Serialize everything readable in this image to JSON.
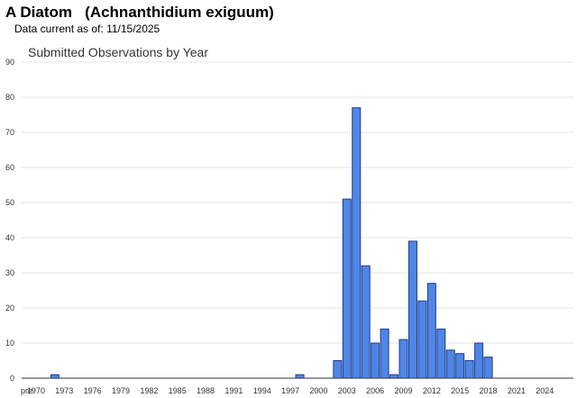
{
  "header": {
    "title": "A Diatom   (Achnanthidium exiguum)",
    "data_current_label": "Data current as of:",
    "data_current_date": "11/15/2025"
  },
  "colors": {
    "bar_fill": "#4f86e6",
    "bar_stroke": "#1c3e8c",
    "gridline": "#e6e6e6",
    "axis": "#333333"
  },
  "chart_data": {
    "type": "bar",
    "title": "Submitted Observations by Year",
    "xlabel": "",
    "ylabel": "",
    "ylim": [
      0,
      90
    ],
    "y_ticks": [
      0,
      10,
      20,
      30,
      40,
      50,
      60,
      70,
      80,
      90
    ],
    "grid": true,
    "legend": "none",
    "x_tick_labels": [
      "pre",
      "1970",
      "1973",
      "1976",
      "1979",
      "1982",
      "1985",
      "1988",
      "1991",
      "1994",
      "1997",
      "2000",
      "2003",
      "2006",
      "2009",
      "2012",
      "2015",
      "2018",
      "2021",
      "2024"
    ],
    "categories": [
      "pre",
      "1970",
      "1971",
      "1972",
      "1973",
      "1974",
      "1975",
      "1976",
      "1977",
      "1978",
      "1979",
      "1980",
      "1981",
      "1982",
      "1983",
      "1984",
      "1985",
      "1986",
      "1987",
      "1988",
      "1989",
      "1990",
      "1991",
      "1992",
      "1993",
      "1994",
      "1995",
      "1996",
      "1997",
      "1998",
      "1999",
      "2000",
      "2001",
      "2002",
      "2003",
      "2004",
      "2005",
      "2006",
      "2007",
      "2008",
      "2009",
      "2010",
      "2011",
      "2012",
      "2013",
      "2014",
      "2015",
      "2016",
      "2017",
      "2018",
      "2019",
      "2020",
      "2021",
      "2022",
      "2023",
      "2024",
      "2025"
    ],
    "series": [
      {
        "values": [
          0,
          0,
          0,
          1,
          0,
          0,
          0,
          0,
          0,
          0,
          0,
          0,
          0,
          0,
          0,
          0,
          0,
          0,
          0,
          0,
          0,
          0,
          0,
          0,
          0,
          0,
          0,
          0,
          0,
          1,
          0,
          0,
          0,
          5,
          51,
          77,
          32,
          10,
          14,
          1,
          11,
          39,
          22,
          27,
          14,
          8,
          7,
          5,
          10,
          6,
          0,
          0,
          0,
          0,
          0,
          0,
          0
        ]
      }
    ]
  }
}
